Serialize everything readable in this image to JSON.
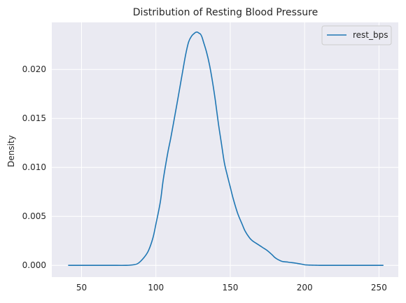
{
  "chart_data": {
    "type": "line",
    "title": "Distribution of Resting Blood Pressure",
    "xlabel": "",
    "ylabel": "Density",
    "xlim": [
      30,
      263
    ],
    "ylim": [
      -0.0012,
      0.0248
    ],
    "x_ticks": [
      50,
      100,
      150,
      200,
      250
    ],
    "y_ticks": [
      0.0,
      0.005,
      0.01,
      0.015,
      0.02
    ],
    "y_tick_labels": [
      "0.000",
      "0.005",
      "0.010",
      "0.015",
      "0.020"
    ],
    "grid": true,
    "legend_position": "top-right",
    "colors": {
      "background": "#eaeaf2",
      "grid": "#ffffff",
      "line": "#1f77b4"
    },
    "series": [
      {
        "name": "rest_bps",
        "x": [
          41,
          60,
          70,
          80,
          85,
          88,
          92,
          95,
          98,
          100,
          103,
          105,
          108,
          110,
          113,
          115,
          118,
          120,
          122,
          124,
          126,
          127,
          128,
          129,
          130,
          131,
          132,
          134,
          136,
          138,
          140,
          142,
          144,
          146,
          148,
          150,
          152,
          155,
          158,
          160,
          163,
          165,
          168,
          170,
          172,
          175,
          178,
          180,
          182,
          185,
          188,
          190,
          193,
          195,
          198,
          200,
          203,
          205,
          208,
          210,
          215,
          220,
          230,
          240,
          253
        ],
        "y": [
          0.0,
          0.0,
          0.0,
          0.0,
          6e-05,
          0.0002,
          0.0008,
          0.0015,
          0.0028,
          0.0042,
          0.0065,
          0.0088,
          0.0115,
          0.013,
          0.0155,
          0.0172,
          0.0198,
          0.0215,
          0.0228,
          0.0234,
          0.0237,
          0.0238,
          0.0238,
          0.0237,
          0.0236,
          0.0233,
          0.0228,
          0.0218,
          0.0205,
          0.0188,
          0.0168,
          0.0145,
          0.0125,
          0.0105,
          0.0092,
          0.008,
          0.0068,
          0.0053,
          0.0042,
          0.0035,
          0.0028,
          0.0025,
          0.0022,
          0.002,
          0.0018,
          0.0015,
          0.0011,
          0.0008,
          0.0006,
          0.0004,
          0.00035,
          0.0003,
          0.00025,
          0.0002,
          0.00012,
          6e-05,
          3e-05,
          2e-05,
          1e-05,
          0.0,
          0.0,
          0.0,
          0.0,
          0.0,
          0.0
        ]
      }
    ]
  }
}
